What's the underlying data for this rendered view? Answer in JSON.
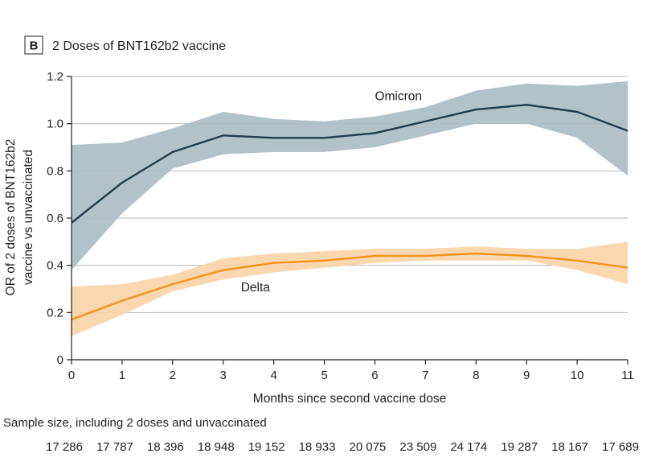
{
  "chart_data": {
    "type": "line",
    "panel_label": "B",
    "title": "2 Doses of BNT162b2 vaccine",
    "xlabel": "Months since second vaccine dose",
    "ylabel": [
      "OR of 2 doses of BNT162b2",
      "vaccine vs unvaccinated"
    ],
    "x": [
      0,
      1,
      2,
      3,
      4,
      5,
      6,
      7,
      8,
      9,
      10,
      11
    ],
    "xlim": [
      0,
      11
    ],
    "ylim": [
      0,
      1.2
    ],
    "yticks": [
      0,
      0.2,
      0.4,
      0.6,
      0.8,
      1.0,
      1.2
    ],
    "ytick_labels": [
      "0",
      "0.2",
      "0.4",
      "0.6",
      "0.8",
      "1.0",
      "1.2"
    ],
    "xtick_labels": [
      "0",
      "1",
      "2",
      "3",
      "4",
      "5",
      "6",
      "7",
      "8",
      "9",
      "10",
      "11"
    ],
    "grid": "horizontal",
    "series": [
      {
        "name": "Omicron",
        "color": "#1f3d4f",
        "band_color": "#a9bcc3",
        "values": [
          0.58,
          0.75,
          0.88,
          0.95,
          0.94,
          0.94,
          0.96,
          1.01,
          1.06,
          1.08,
          1.05,
          0.97
        ],
        "lower": [
          0.38,
          0.62,
          0.81,
          0.87,
          0.88,
          0.88,
          0.9,
          0.95,
          1.0,
          1.0,
          0.94,
          0.78
        ],
        "upper": [
          0.91,
          0.92,
          0.98,
          1.05,
          1.02,
          1.01,
          1.03,
          1.07,
          1.14,
          1.17,
          1.16,
          1.18
        ]
      },
      {
        "name": "Delta",
        "color": "#f2921c",
        "band_color": "#fbd3a6",
        "values": [
          0.17,
          0.25,
          0.32,
          0.38,
          0.41,
          0.42,
          0.44,
          0.44,
          0.45,
          0.44,
          0.42,
          0.39
        ],
        "lower": [
          0.1,
          0.19,
          0.29,
          0.34,
          0.37,
          0.39,
          0.41,
          0.42,
          0.42,
          0.42,
          0.38,
          0.32
        ],
        "upper": [
          0.31,
          0.32,
          0.36,
          0.43,
          0.45,
          0.46,
          0.47,
          0.47,
          0.48,
          0.47,
          0.47,
          0.5
        ]
      }
    ],
    "annotations": [
      {
        "text": "Omicron",
        "x": 6.0,
        "y": 1.1
      },
      {
        "text": "Delta",
        "x": 3.35,
        "y": 0.29
      }
    ],
    "sample_size": {
      "label": "Sample size, including 2 doses and unvaccinated",
      "values": [
        "17 286",
        "17 787",
        "18 396",
        "18 948",
        "19 152",
        "18 933",
        "20 075",
        "23 509",
        "24 174",
        "19 287",
        "18 167",
        "17 689"
      ]
    }
  }
}
